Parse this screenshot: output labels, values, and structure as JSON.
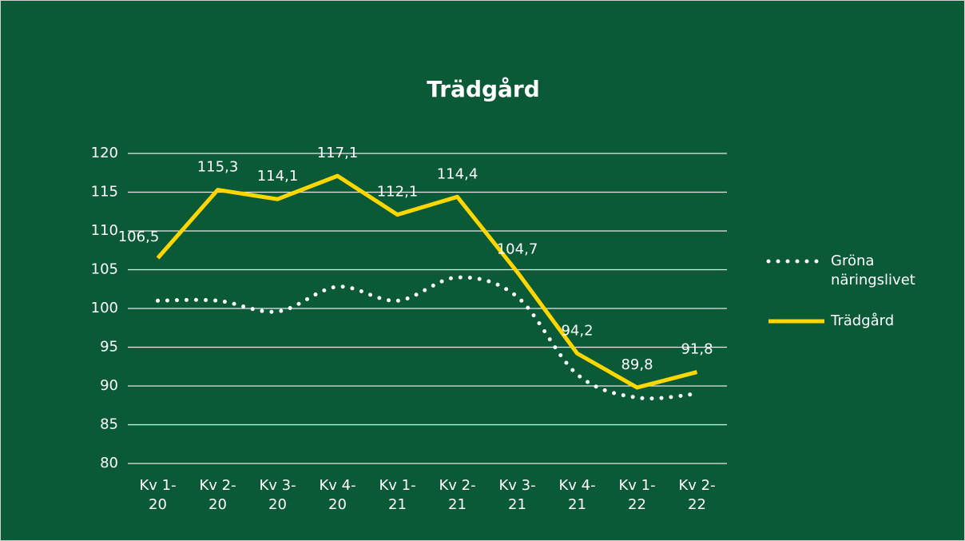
{
  "chart_data": {
    "type": "line",
    "title": "Trädgård",
    "categories": [
      "Kv 1-20",
      "Kv 2-20",
      "Kv 3-20",
      "Kv 4-20",
      "Kv 1-21",
      "Kv 2-21",
      "Kv 3-21",
      "Kv 4-21",
      "Kv 1-22",
      "Kv 2-22"
    ],
    "series": [
      {
        "name": "Gröna näringslivet",
        "color": "#ffffff",
        "style": "dotted",
        "smooth": true,
        "values": [
          101,
          101,
          99.6,
          102.8,
          101,
          104,
          101.5,
          91.5,
          88.5,
          89
        ]
      },
      {
        "name": "Trädgård",
        "color": "#ffd700",
        "style": "solid",
        "values": [
          106.5,
          115.3,
          114.1,
          117.1,
          112.1,
          114.4,
          104.7,
          94.2,
          89.8,
          91.8
        ],
        "value_labels": [
          "106,5",
          "115,3",
          "114,1",
          "117,1",
          "112,1",
          "114,4",
          "104,7",
          "94,2",
          "89,8",
          "91,8"
        ]
      }
    ],
    "ylim": [
      80,
      120
    ],
    "yticks": [
      80,
      85,
      90,
      95,
      100,
      105,
      110,
      115,
      120
    ],
    "grid": true,
    "legend": "right"
  }
}
